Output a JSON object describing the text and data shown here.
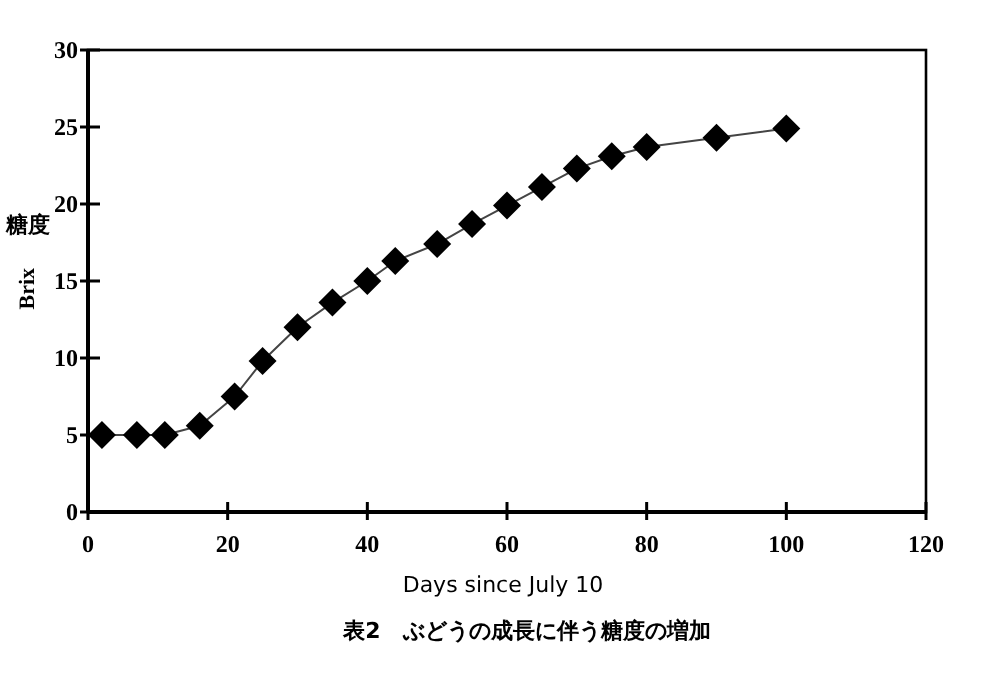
{
  "chart_data": {
    "type": "line",
    "xlabel": "Days since July 10",
    "ylabel": "Brix",
    "annotations": [
      "糖度",
      "表2　ぶどうの成長に伴う糖度の増加"
    ],
    "x": [
      2,
      7,
      11,
      16,
      21,
      25,
      30,
      35,
      40,
      44,
      50,
      55,
      60,
      65,
      70,
      75,
      80,
      90,
      100
    ],
    "series": [
      {
        "color": "#000000",
        "values": [
          5.0,
          5.0,
          5.0,
          5.6,
          7.5,
          9.8,
          12.0,
          13.6,
          15.0,
          16.3,
          17.4,
          18.7,
          19.9,
          21.1,
          22.3,
          23.1,
          23.7,
          24.3,
          24.9
        ]
      }
    ],
    "xlim": [
      0,
      120
    ],
    "xticks": [
      0,
      20,
      40,
      60,
      80,
      100,
      120
    ],
    "ylim": [
      0,
      30
    ],
    "yticks": [
      0,
      5,
      10,
      15,
      20,
      25,
      30
    ],
    "marker": "diamond",
    "line_style": "solid",
    "grid": false
  }
}
